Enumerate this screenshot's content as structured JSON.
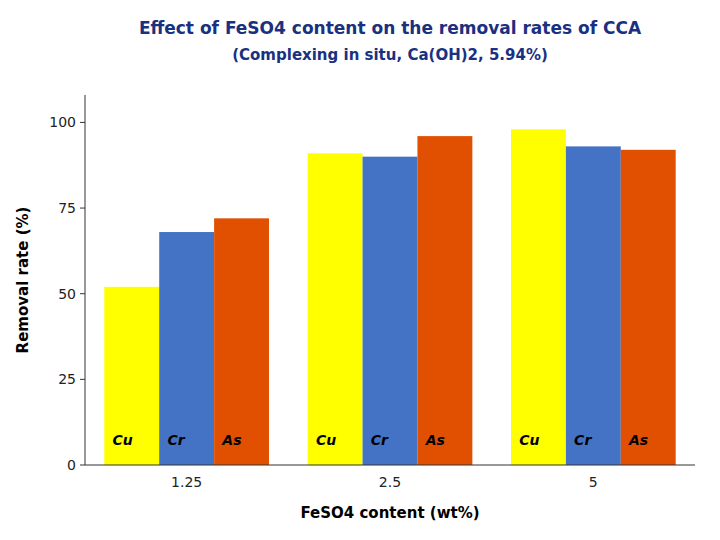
{
  "chart_data": {
    "type": "bar",
    "title": "Effect of FeSO4 content on the removal rates of CCA",
    "subtitle": "(Complexing in situ, Ca(OH)2, 5.94%)",
    "x_label": "FeSO4 content (wt%)",
    "y_label": "Removal rate (%)",
    "categories": [
      "1.25",
      "2.5",
      "5"
    ],
    "series": [
      {
        "name": "Cu",
        "color": "#FFFF00",
        "values": [
          52,
          91,
          98
        ]
      },
      {
        "name": "Cr",
        "color": "#4472C4",
        "values": [
          68,
          90,
          93
        ]
      },
      {
        "name": "As",
        "color": "#E05000",
        "values": [
          72,
          96,
          92
        ]
      }
    ],
    "ylim": [
      0,
      108
    ],
    "yticks": [
      0,
      25,
      50,
      75,
      100
    ],
    "grid": false,
    "data_labels": false
  }
}
